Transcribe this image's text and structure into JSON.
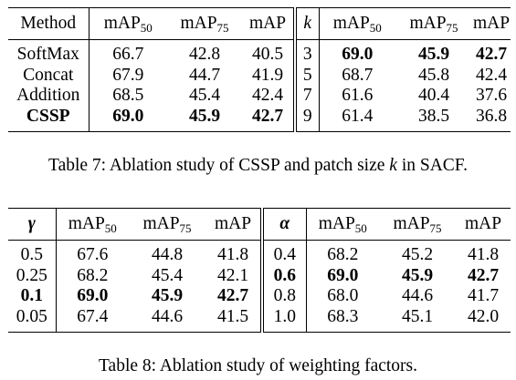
{
  "table7": {
    "header": {
      "method": "Method",
      "map50_base": "mAP",
      "map50_sub": "50",
      "map75_base": "mAP",
      "map75_sub": "75",
      "map": "mAP",
      "k": "k",
      "k_map50_base": "mAP",
      "k_map50_sub": "50",
      "k_map75_base": "mAP",
      "k_map75_sub": "75",
      "k_map": "mAP"
    },
    "rows": [
      [
        "SoftMax",
        "66.7",
        "42.8",
        "40.5",
        "3",
        "69.0",
        "45.9",
        "42.7"
      ],
      [
        "Concat",
        "67.9",
        "44.7",
        "41.9",
        "5",
        "68.7",
        "45.8",
        "42.4"
      ],
      [
        "Addition",
        "68.5",
        "45.4",
        "42.4",
        "7",
        "61.6",
        "40.4",
        "37.6"
      ],
      [
        "CSSP",
        "69.0",
        "45.9",
        "42.7",
        "9",
        "61.4",
        "38.5",
        "36.8"
      ]
    ],
    "caption_prefix": "Table 7: Ablation study of CSSP and patch size ",
    "caption_var": "k",
    "caption_suffix": " in SACF."
  },
  "table8": {
    "header": {
      "gamma": "γ",
      "map50_base": "mAP",
      "map50_sub": "50",
      "map75_base": "mAP",
      "map75_sub": "75",
      "map": "mAP",
      "alpha": "α",
      "a_map50_base": "mAP",
      "a_map50_sub": "50",
      "a_map75_base": "mAP",
      "a_map75_sub": "75",
      "a_map": "mAP"
    },
    "rows": [
      [
        "0.5",
        "67.6",
        "44.8",
        "41.8",
        "0.4",
        "68.2",
        "45.2",
        "41.8"
      ],
      [
        "0.25",
        "68.2",
        "45.4",
        "42.1",
        "0.6",
        "69.0",
        "45.9",
        "42.7"
      ],
      [
        "0.1",
        "69.0",
        "45.9",
        "42.7",
        "0.8",
        "68.0",
        "44.6",
        "41.7"
      ],
      [
        "0.05",
        "67.4",
        "44.6",
        "41.5",
        "1.0",
        "68.3",
        "45.1",
        "42.0"
      ]
    ],
    "caption": "Table 8: Ablation study of weighting factors."
  }
}
